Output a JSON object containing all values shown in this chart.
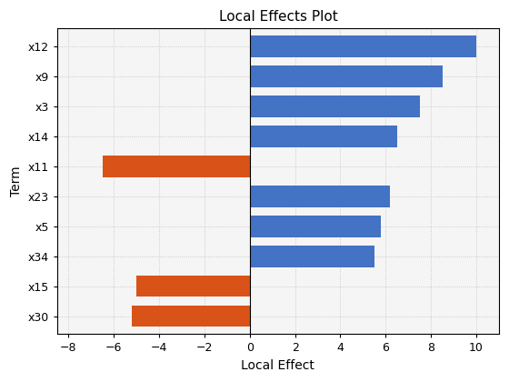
{
  "title": "Local Effects Plot",
  "xlabel": "Local Effect",
  "ylabel": "Term",
  "categories": [
    "x30",
    "x15",
    "x34",
    "x5",
    "x23",
    "x11",
    "x14",
    "x3",
    "x9",
    "x12"
  ],
  "values": [
    -5.2,
    -5.0,
    5.5,
    5.8,
    6.2,
    -6.5,
    6.5,
    7.5,
    8.5,
    10.0
  ],
  "bar_colors": [
    "#d95319",
    "#d95319",
    "#4472c4",
    "#4472c4",
    "#4472c4",
    "#d95319",
    "#4472c4",
    "#4472c4",
    "#4472c4",
    "#4472c4"
  ],
  "xlim": [
    -8.5,
    11.0
  ],
  "xticks": [
    -8,
    -6,
    -4,
    -2,
    0,
    2,
    4,
    6,
    8,
    10
  ],
  "background_color": "#f5f5f5",
  "grid_color": "#c0c0c0",
  "title_fontsize": 11,
  "label_fontsize": 10,
  "tick_fontsize": 9
}
